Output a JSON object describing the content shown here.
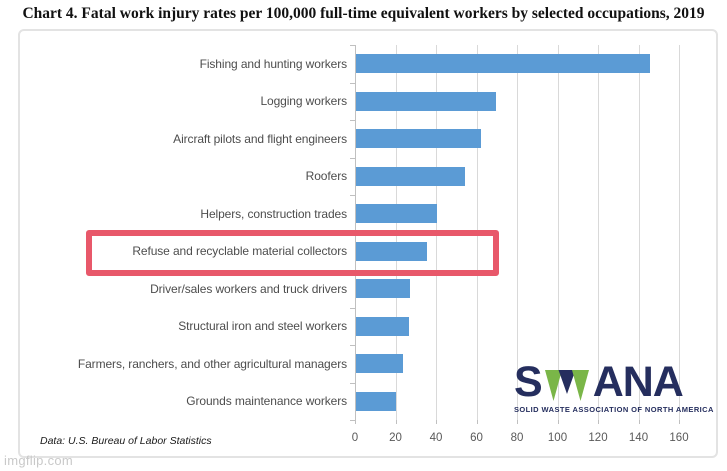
{
  "title": "Chart 4. Fatal work injury rates per 100,000 full-time equivalent workers by selected occupations, 2019",
  "source_note": "Data: U.S. Bureau of Labor Statistics",
  "watermark": "imgflip.com",
  "logo": {
    "name": "SWANA",
    "letters_before_w": "S",
    "letters_after_w": "ANA",
    "tagline": "SOLID WASTE ASSOCIATION OF NORTH AMERICA",
    "navy": "#252e5e",
    "green": "#7ab648"
  },
  "highlight": {
    "label": "Refuse and recyclable material collectors",
    "color": "#e8586a"
  },
  "chart_data": {
    "type": "bar",
    "orientation": "horizontal",
    "title": "Chart 4. Fatal work injury rates per 100,000 full-time equivalent workers by selected occupations, 2019",
    "categories": [
      "Fishing and hunting workers",
      "Logging workers",
      "Aircraft pilots and flight engineers",
      "Roofers",
      "Helpers, construction trades",
      "Refuse and recyclable material collectors",
      "Driver/sales workers and truck drivers",
      "Structural iron and steel workers",
      "Farmers, ranchers, and other agricultural managers",
      "Grounds maintenance workers"
    ],
    "values": [
      145.0,
      68.9,
      61.8,
      54.0,
      40.0,
      35.2,
      26.8,
      26.3,
      23.2,
      19.8
    ],
    "xlabel": "",
    "ylabel": "",
    "xlim": [
      0,
      160
    ],
    "xticks": [
      0,
      20,
      40,
      60,
      80,
      100,
      120,
      140,
      160
    ],
    "bar_color": "#5b9bd5",
    "grid": true,
    "legend": false,
    "highlighted_category": "Refuse and recyclable material collectors"
  }
}
